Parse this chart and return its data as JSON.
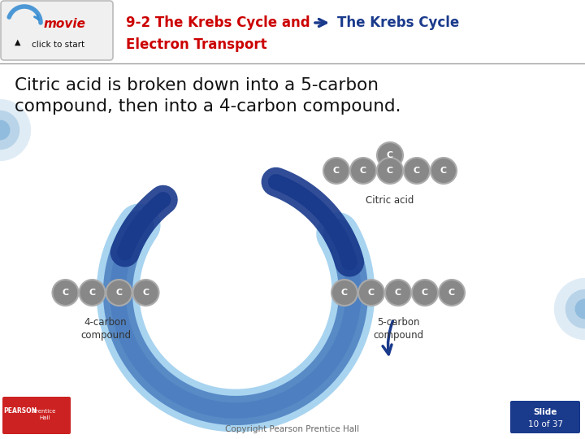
{
  "bg_color": "#ffffff",
  "title_text": "9-2 The Krebs Cycle and",
  "title_color": "#cc0000",
  "arrow_label": "The Krebs Cycle",
  "arrow_label_color": "#1a3a8c",
  "subtitle_text": "Electron Transport",
  "subtitle_color": "#cc0000",
  "body_text": "Citric acid is broken down into a 5-carbon\ncompound, then into a 4-carbon compound.",
  "body_color": "#111111",
  "citric_acid_label": "Citric acid",
  "five_carbon_label": "5-carbon\ncompound",
  "four_carbon_label": "4-carbon\ncompound",
  "footer_text": "Copyright Pearson Prentice Hall",
  "slide_label": "Slide",
  "slide_num": "10 of 37",
  "molecule_fill": "#888888",
  "molecule_edge": "#aaaaaa",
  "arc_dark": "#1a3a8c",
  "arc_mid": "#4a7dbf",
  "arc_light": "#a8d4f0",
  "dec_arc_color": "#5599cc",
  "header_sep_color": "#a0a0a0",
  "movie_box_fill": "#f0f0f0",
  "movie_box_edge": "#bbbbbb",
  "movie_text_color": "#cc0000",
  "movie_sub_color": "#111111",
  "pearson_red": "#cc2222",
  "slide_box_color": "#1a3a8c"
}
